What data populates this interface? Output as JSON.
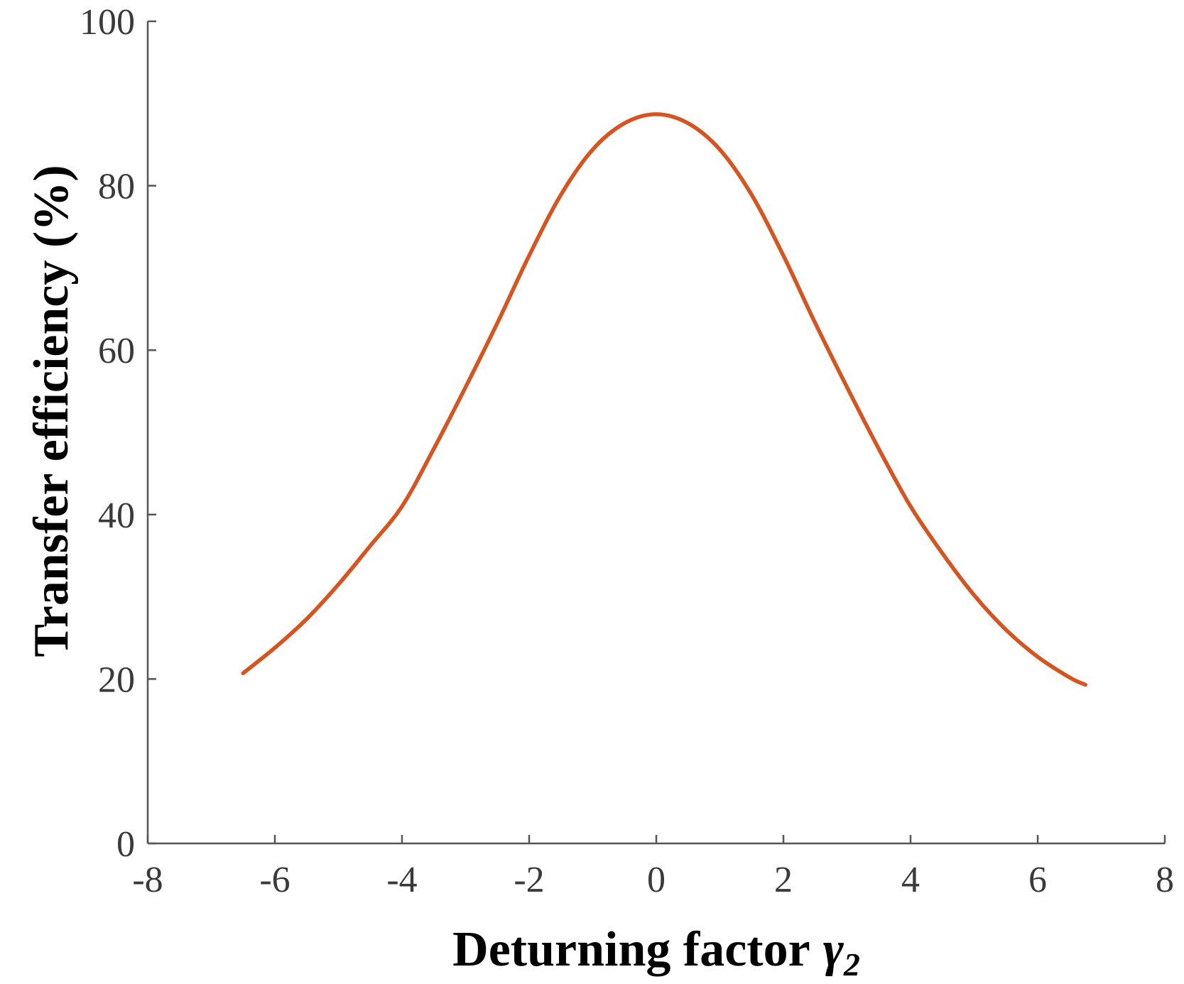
{
  "colors": {
    "series": "#d9531e",
    "axis": "#555555",
    "text": "#3a3a3a"
  },
  "chart_data": {
    "type": "line",
    "title": "",
    "xlabel": "Deturning factor",
    "xlabel_symbol": "γ",
    "xlabel_subscript": "2",
    "ylabel": "Transfer efficiency (%)",
    "xlim": [
      -8,
      8
    ],
    "ylim": [
      0,
      100
    ],
    "xticks": [
      "-8",
      "-6",
      "-4",
      "-2",
      "0",
      "2",
      "4",
      "6",
      "8"
    ],
    "yticks": [
      "0",
      "20",
      "40",
      "60",
      "80",
      "100"
    ],
    "grid": false,
    "legend": "none",
    "series": [
      {
        "x": [
          -6.5,
          -6.0,
          -5.5,
          -5.0,
          -4.5,
          -4.0,
          -3.5,
          -3.0,
          -2.5,
          -2.0,
          -1.5,
          -1.0,
          -0.5,
          0.0,
          0.5,
          1.0,
          1.5,
          2.0,
          2.5,
          3.0,
          3.5,
          4.0,
          4.5,
          5.0,
          5.5,
          6.0,
          6.5,
          6.75
        ],
        "y": [
          20.7,
          23.8,
          27.3,
          31.5,
          36.2,
          41.0,
          48.0,
          55.5,
          63.3,
          71.5,
          78.9,
          84.4,
          87.6,
          88.7,
          87.6,
          84.4,
          78.9,
          71.5,
          63.3,
          55.5,
          48.0,
          41.0,
          35.3,
          30.2,
          26.0,
          22.7,
          20.2,
          19.3
        ]
      }
    ]
  }
}
